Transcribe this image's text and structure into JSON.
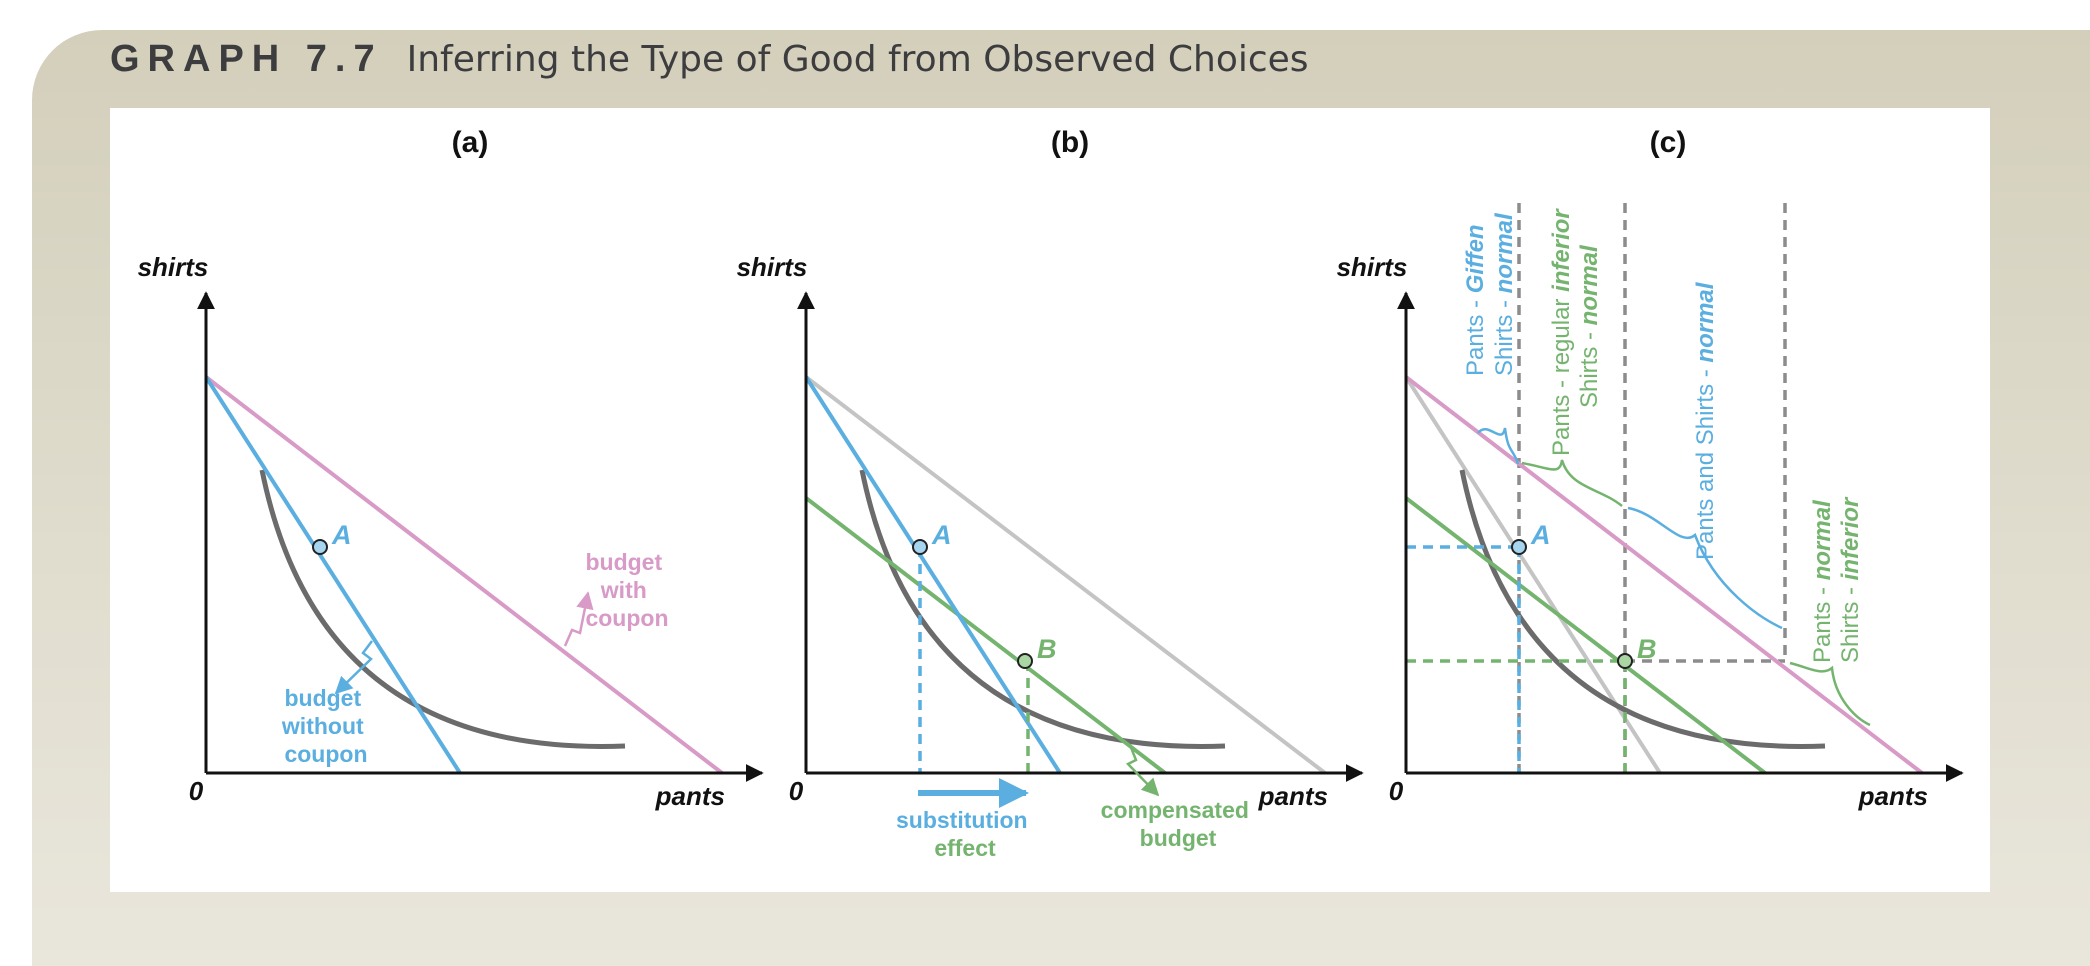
{
  "figure": {
    "label": "GRAPH 7.7",
    "title": "Inferring the Type of Good from Observed Choices"
  },
  "colors": {
    "blue": "#5aaee0",
    "pink": "#d89ac6",
    "green": "#74b46e",
    "indifference_curve": "#6b6b6b",
    "light_gray": "#c4c4c4",
    "dashed_gray": "#8c8c8c",
    "axis": "#111111"
  },
  "panels": {
    "a": {
      "label": "(a)",
      "y_axis": "shirts",
      "x_axis": "pants",
      "origin": "0",
      "point_a": "A",
      "budget_with_coupon": [
        "budget",
        "with",
        "coupon"
      ],
      "budget_without_coupon": [
        "budget",
        "without",
        "coupon"
      ]
    },
    "b": {
      "label": "(b)",
      "y_axis": "shirts",
      "x_axis": "pants",
      "origin": "0",
      "point_a": "A",
      "point_b": "B",
      "substitution_effect": [
        "substitution",
        "effect"
      ],
      "compensated_budget": [
        "compensated",
        "budget"
      ]
    },
    "c": {
      "label": "(c)",
      "y_axis": "shirts",
      "x_axis": "pants",
      "origin": "0",
      "point_a": "A",
      "point_b": "B",
      "region_1": {
        "line1_prefix": "Pants - ",
        "line1_emph": "Giffen",
        "line2_prefix": "Shirts - ",
        "line2_emph": "normal"
      },
      "region_2": {
        "line1_prefix": "Pants - regular ",
        "line1_emph": "inferior",
        "line2_prefix": "Shirts - ",
        "line2_emph": "normal"
      },
      "region_3": {
        "line1_prefix": "Pants and Shirts  - ",
        "line1_emph": "normal"
      },
      "region_4": {
        "line1_prefix": "Pants - ",
        "line1_emph": "normal",
        "line2_prefix": "Shirts - ",
        "line2_emph": "inferior"
      }
    }
  }
}
